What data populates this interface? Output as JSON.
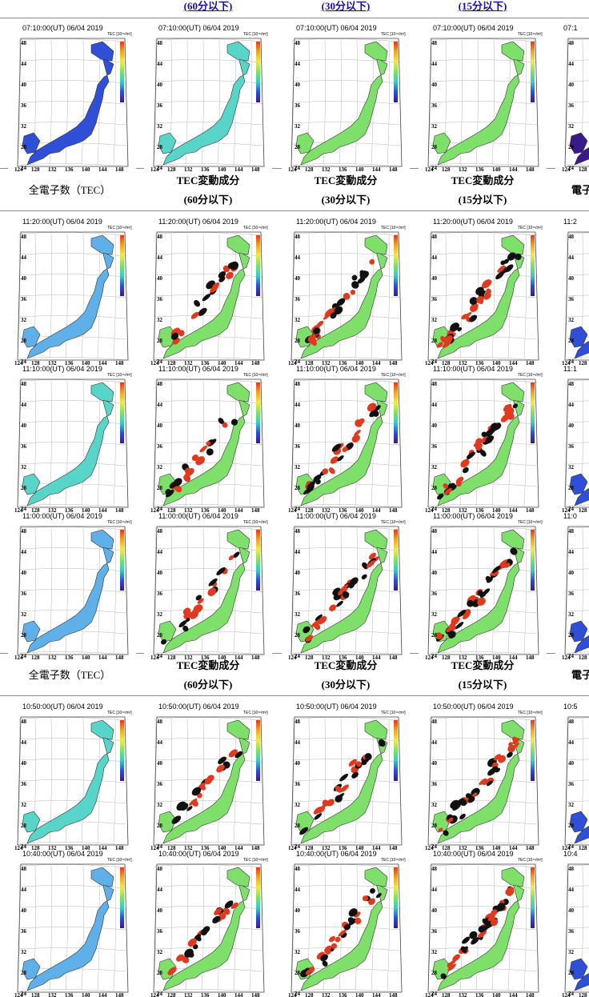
{
  "top_header": {
    "cols": [
      "",
      "(60分以下)",
      "(30分以下)",
      "(15分以下)"
    ]
  },
  "section_header": {
    "col0": "全電子数（TEC）",
    "cols": [
      {
        "title": "TEC変動成分",
        "sub": "(60分以下)"
      },
      {
        "title": "TEC変動成分",
        "sub": "(30分以下)"
      },
      {
        "title": "TEC変動成分",
        "sub": "(15分以下)"
      }
    ],
    "edge": "電子"
  },
  "map": {
    "unit": "TEC [10¹⁶/m²]",
    "lat_labels": [
      "48",
      "44",
      "40",
      "36",
      "32",
      "28",
      "24"
    ],
    "lon_labels": [
      "124",
      "128",
      "132",
      "136",
      "140",
      "144",
      "148"
    ]
  },
  "rows": [
    {
      "timestamp": "07:10:00(UT)  06/04 2019",
      "edge": "07:1"
    },
    {
      "timestamp": "11:20:00(UT)  06/04 2019",
      "edge": "11:2"
    },
    {
      "timestamp": "11:10:00(UT)  06/04 2019",
      "edge": "11:1"
    },
    {
      "timestamp": "11:00:00(UT)  06/04 2019",
      "edge": "11:0"
    },
    {
      "timestamp": "10:50:00(UT)  06/04 2019",
      "edge": "10:5"
    },
    {
      "timestamp": "10:40:00(UT)  06/04 2019",
      "edge": "10:4"
    }
  ],
  "colors": {
    "link": "#1a0dab",
    "tec_low_blue": "#2e4fd6",
    "tec_light_blue": "#5fb0e8",
    "tec_cyan": "#59d4c8",
    "tec_green": "#7ee06a",
    "disturb_red": "#e03a1e",
    "disturb_black": "#111111"
  }
}
